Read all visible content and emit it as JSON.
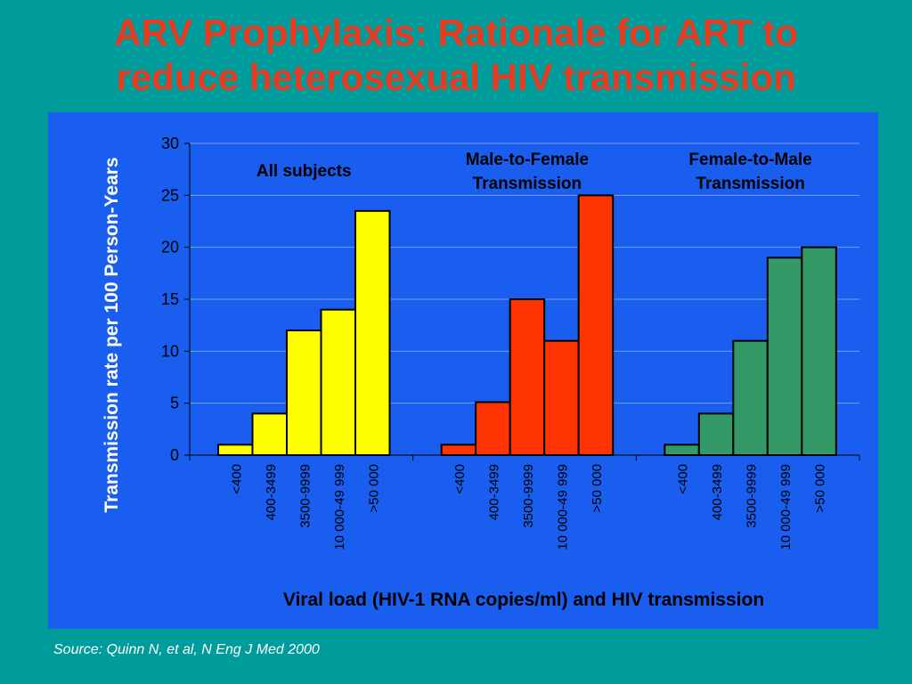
{
  "slide": {
    "title_line1": "ARV Prophylaxis: Rationale for ART to",
    "title_line2": "reduce heterosexual HIV transmission",
    "source": "Source: Quinn N, et al, N Eng J Med 2000"
  },
  "colors": {
    "background": "#009b9b",
    "title": "#e83a1e",
    "panel": "#1a5ef0",
    "all_subjects": "#ffff00",
    "male_to_female": "#ff3300",
    "female_to_male": "#339966"
  },
  "chart_data": {
    "type": "bar",
    "ylabel": "Transmission rate per 100 Person-Years",
    "xlabel": "Viral load (HIV-1 RNA copies/ml) and HIV transmission",
    "ylim": [
      0,
      30
    ],
    "yticks": [
      0,
      5,
      10,
      15,
      20,
      25,
      30
    ],
    "grid": true,
    "categories": [
      "<400",
      "400-3499",
      "3500-9999",
      "10 000-49 999",
      ">50 000"
    ],
    "groups": [
      {
        "label_lines": [
          "All subjects"
        ],
        "color": "#ffff00",
        "values": [
          1,
          4,
          12,
          14,
          23.5
        ]
      },
      {
        "label_lines": [
          "Male-to-Female",
          "Transmission"
        ],
        "color": "#ff3300",
        "values": [
          1,
          5.1,
          15,
          11,
          25
        ]
      },
      {
        "label_lines": [
          "Female-to-Male",
          "Transmission"
        ],
        "color": "#339966",
        "values": [
          1,
          4,
          11,
          19,
          20
        ]
      }
    ]
  }
}
